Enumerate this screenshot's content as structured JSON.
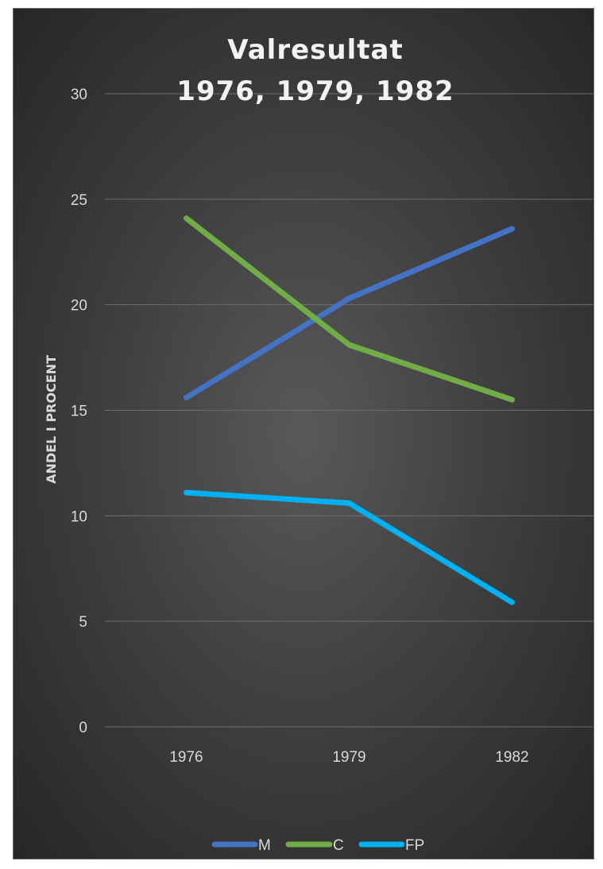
{
  "chart_data": {
    "type": "line",
    "title_lines": [
      "Valresultat",
      "1976, 1979, 1982"
    ],
    "xlabel": "",
    "ylabel": "ANDEL I PROCENT",
    "categories": [
      "1976",
      "1979",
      "1982"
    ],
    "ylim": [
      0,
      30
    ],
    "yticks": [
      "0",
      "5",
      "10",
      "15",
      "20",
      "25",
      "30"
    ],
    "grid": true,
    "legend_position": "bottom",
    "series": [
      {
        "name": "M",
        "color": "#4472c4",
        "values": [
          15.6,
          20.3,
          23.6
        ]
      },
      {
        "name": "C",
        "color": "#70ad47",
        "values": [
          24.1,
          18.1,
          15.5
        ]
      },
      {
        "name": "FP",
        "color": "#00b0f0",
        "values": [
          11.1,
          10.6,
          5.9
        ]
      }
    ]
  }
}
